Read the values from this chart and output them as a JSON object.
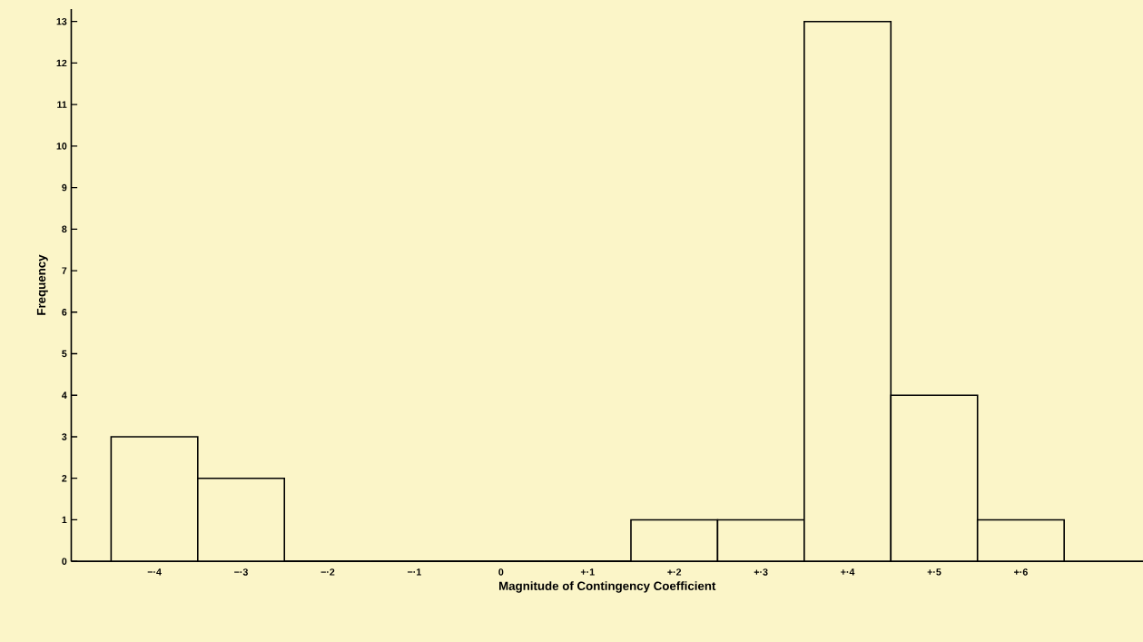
{
  "chart_data": {
    "type": "bar",
    "xlabel": "Magnitude of Contingency Coefficient",
    "ylabel": "Frequency",
    "categories": [
      "−·4",
      "−·3",
      "−·2",
      "−·1",
      "0",
      "+·1",
      "+·2",
      "+·3",
      "+·4",
      "+·5",
      "+·6"
    ],
    "values": [
      3,
      2,
      0,
      0,
      0,
      0,
      1,
      1,
      13,
      4,
      1
    ],
    "color": "#fbf5c8",
    "ylim": [
      0,
      13.3
    ],
    "yticks": [
      0,
      1,
      2,
      3,
      4,
      5,
      6,
      7,
      8,
      9,
      10,
      11,
      12,
      13
    ],
    "grid": false
  }
}
